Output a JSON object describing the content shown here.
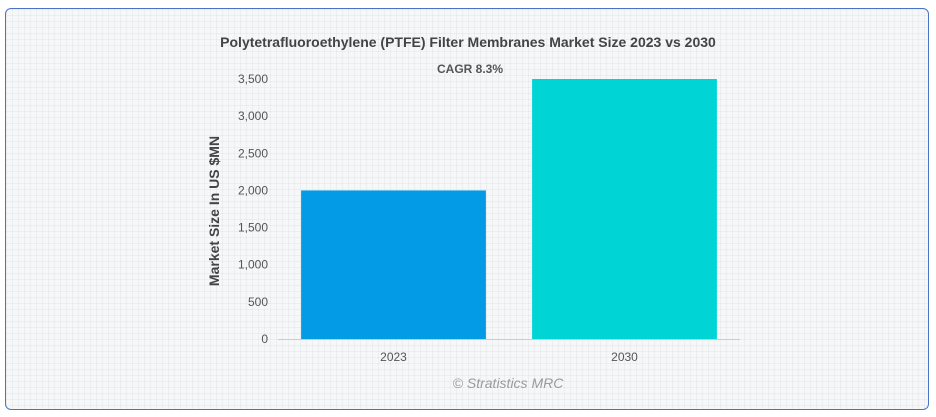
{
  "chart_data": {
    "type": "bar",
    "title": "Polytetrafluoroethylene (PTFE) Filter Membranes Market Size 2023 vs 2030",
    "annotation": "CAGR 8.3%",
    "xlabel": "",
    "ylabel": "Market Size In US $MN",
    "categories": [
      "2023",
      "2030"
    ],
    "values": [
      2000,
      3500
    ],
    "colors": [
      "#039be5",
      "#00d4d4"
    ],
    "ylim": [
      0,
      3500
    ],
    "yticks": [
      0,
      500,
      1000,
      1500,
      2000,
      2500,
      3000,
      3500
    ],
    "ytick_labels": [
      "0",
      "500",
      "1,000",
      "1,500",
      "2,000",
      "2,500",
      "3,000",
      "3,500"
    ],
    "grid": false,
    "credits": "© Stratistics MRC"
  },
  "colors": {
    "frame_border": "#4a74c9",
    "axis": "#cccccc"
  }
}
